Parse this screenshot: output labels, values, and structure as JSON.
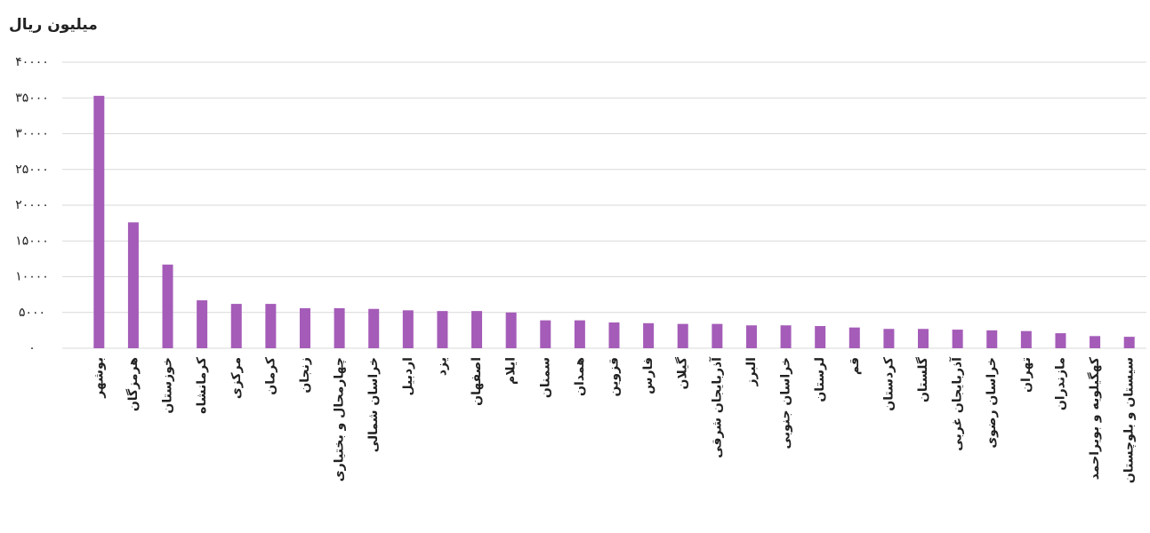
{
  "chart_data": {
    "type": "bar",
    "y_label": "میلیون ریال",
    "categories": [
      "بوشهر",
      "هرمزگان",
      "خوزستان",
      "کرمانشاه",
      "مرکزی",
      "کرمان",
      "زنجان",
      "چهارمحال و بختیاری",
      "خراسان شمالی",
      "اردبیل",
      "یزد",
      "اصفهان",
      "ایلام",
      "سمنان",
      "همدان",
      "قزوین",
      "فارس",
      "گیلان",
      "آذربایجان شرقی",
      "البرز",
      "خراسان جنوبی",
      "لرستان",
      "قم",
      "کردستان",
      "گلستان",
      "آذربایجان غربی",
      "خراسان رضوی",
      "تهران",
      "مازندران",
      "کهگیلویه و بویراحمد",
      "سیستان و بلوچستان"
    ],
    "values": [
      35300,
      17600,
      11700,
      6700,
      6200,
      6200,
      5600,
      5600,
      5500,
      5300,
      5200,
      5200,
      5000,
      3900,
      3900,
      3600,
      3500,
      3400,
      3400,
      3200,
      3200,
      3100,
      2900,
      2700,
      2700,
      2600,
      2500,
      2400,
      2100,
      1700,
      1600
    ],
    "color": "#a45cb8",
    "ylim": [
      0,
      40000
    ],
    "yticks": [
      {
        "value": 0,
        "label": "۰"
      },
      {
        "value": 5000,
        "label": "۵۰۰۰"
      },
      {
        "value": 10000,
        "label": "۱۰۰۰۰"
      },
      {
        "value": 15000,
        "label": "۱۵۰۰۰"
      },
      {
        "value": 20000,
        "label": "۲۰۰۰۰"
      },
      {
        "value": 25000,
        "label": "۲۵۰۰۰"
      },
      {
        "value": 30000,
        "label": "۳۰۰۰۰"
      },
      {
        "value": 35000,
        "label": "۳۵۰۰۰"
      },
      {
        "value": 40000,
        "label": "۴۰۰۰۰"
      }
    ],
    "grid": true
  }
}
